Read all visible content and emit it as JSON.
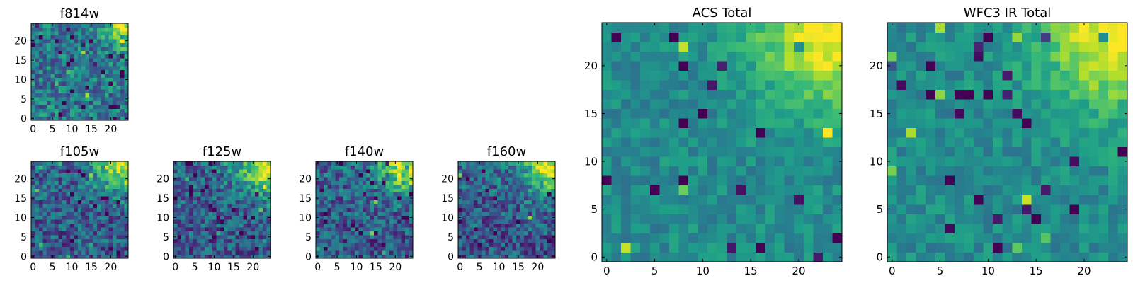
{
  "chart_data": [
    {
      "id": "f814w",
      "type": "heatmap",
      "title": "f814w",
      "xlim": [
        0,
        25
      ],
      "ylim": [
        0,
        25
      ],
      "xticks": [
        0,
        5,
        10,
        15,
        20
      ],
      "yticks": [
        0,
        5,
        10,
        15,
        20
      ],
      "colormap": "viridis",
      "grid": false
    },
    {
      "id": "f105w",
      "type": "heatmap",
      "title": "f105w",
      "xlim": [
        0,
        25
      ],
      "ylim": [
        0,
        25
      ],
      "xticks": [
        0,
        5,
        10,
        15,
        20
      ],
      "yticks": [
        0,
        5,
        10,
        15,
        20
      ],
      "colormap": "viridis",
      "grid": false
    },
    {
      "id": "f125w",
      "type": "heatmap",
      "title": "f125w",
      "xlim": [
        0,
        25
      ],
      "ylim": [
        0,
        25
      ],
      "xticks": [
        0,
        5,
        10,
        15,
        20
      ],
      "yticks": [
        0,
        5,
        10,
        15,
        20
      ],
      "colormap": "viridis",
      "grid": false
    },
    {
      "id": "f140w",
      "type": "heatmap",
      "title": "f140w",
      "xlim": [
        0,
        25
      ],
      "ylim": [
        0,
        25
      ],
      "xticks": [
        0,
        5,
        10,
        15,
        20
      ],
      "yticks": [
        0,
        5,
        10,
        15,
        20
      ],
      "colormap": "viridis",
      "grid": false
    },
    {
      "id": "f160w",
      "type": "heatmap",
      "title": "f160w",
      "xlim": [
        0,
        25
      ],
      "ylim": [
        0,
        25
      ],
      "xticks": [
        0,
        5,
        10,
        15,
        20
      ],
      "yticks": [
        0,
        5,
        10,
        15,
        20
      ],
      "colormap": "viridis",
      "grid": false
    },
    {
      "id": "acs_total",
      "type": "heatmap",
      "title": "ACS Total",
      "xlim": [
        0,
        25
      ],
      "ylim": [
        0,
        25
      ],
      "xticks": [
        0,
        5,
        10,
        15,
        20
      ],
      "yticks": [
        0,
        5,
        10,
        15,
        20
      ],
      "colormap": "viridis",
      "grid": false
    },
    {
      "id": "wfc3_ir_total",
      "type": "heatmap",
      "title": "WFC3 IR Total",
      "xlim": [
        0,
        25
      ],
      "ylim": [
        0,
        25
      ],
      "xticks": [
        0,
        5,
        10,
        15,
        20
      ],
      "yticks": [
        0,
        5,
        10,
        15,
        20
      ],
      "colormap": "viridis",
      "grid": false
    }
  ]
}
